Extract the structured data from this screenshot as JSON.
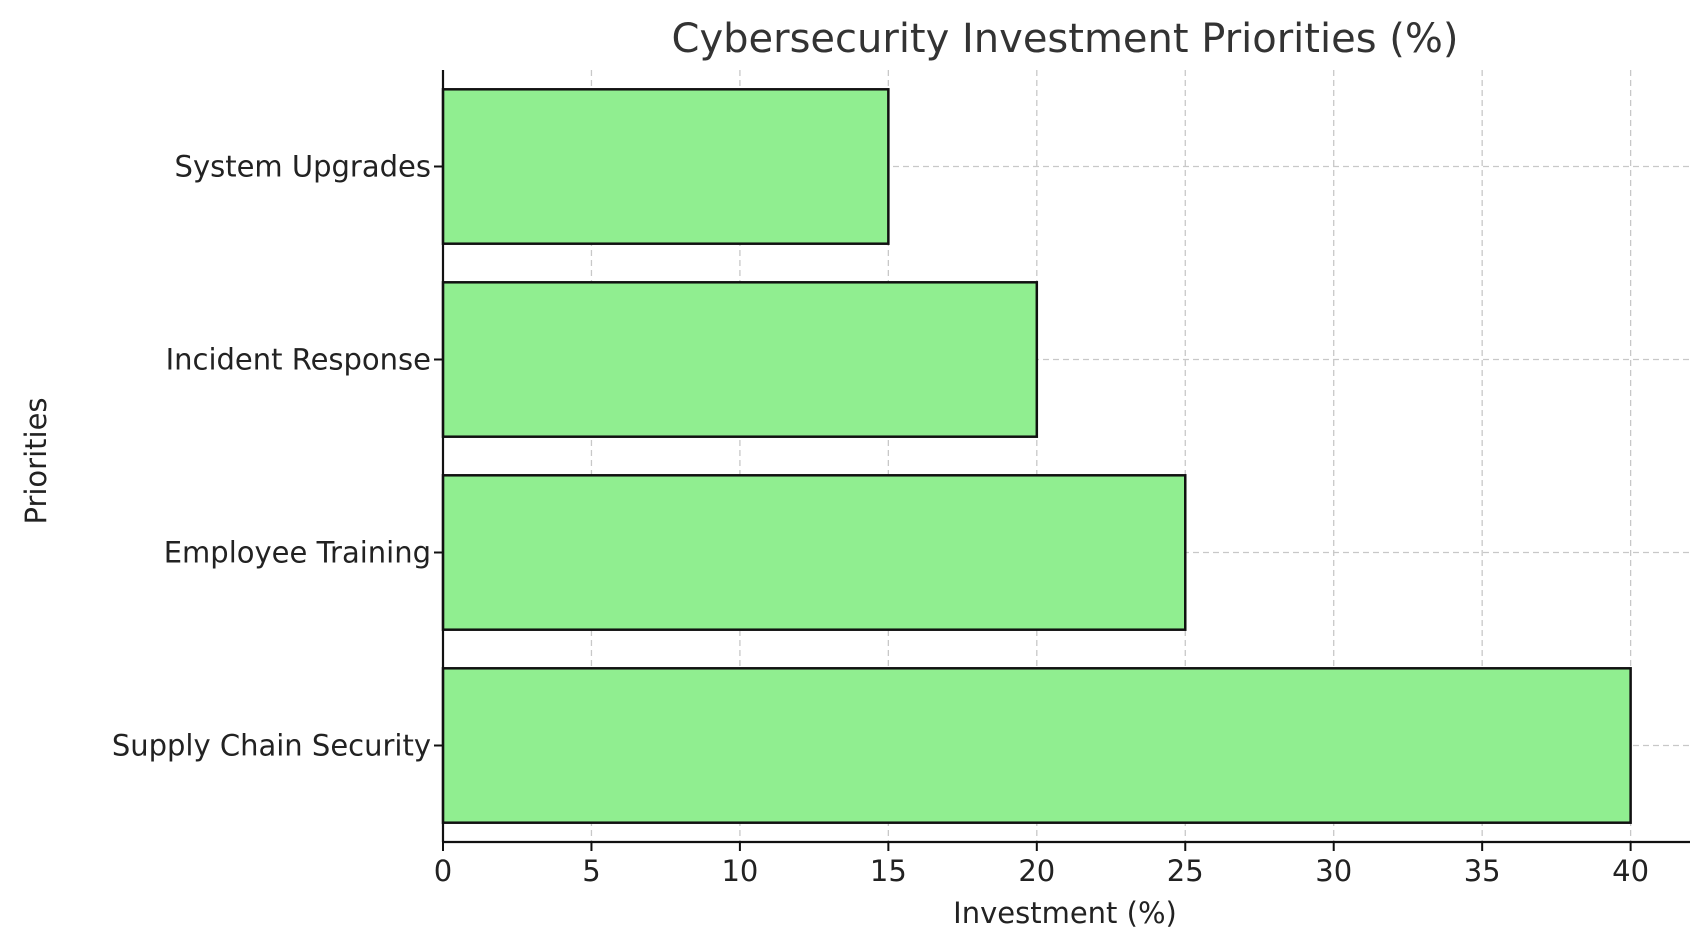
{
  "chart_data": {
    "type": "bar",
    "orientation": "horizontal",
    "title": "Cybersecurity Investment Priorities (%)",
    "xlabel": "Investment (%)",
    "ylabel": "Priorities",
    "categories": [
      "Supply Chain Security",
      "Employee Training",
      "Incident Response",
      "System Upgrades"
    ],
    "values": [
      40,
      25,
      20,
      15
    ],
    "xlim": [
      0,
      42
    ],
    "x_ticks": [
      0,
      5,
      10,
      15,
      20,
      25,
      30,
      35,
      40
    ],
    "x_tick_labels": [
      "0",
      "5",
      "10",
      "15",
      "20",
      "25",
      "30",
      "35",
      "40"
    ],
    "grid": true,
    "bar_color": "#90ee90",
    "edge_color": "#111111"
  }
}
